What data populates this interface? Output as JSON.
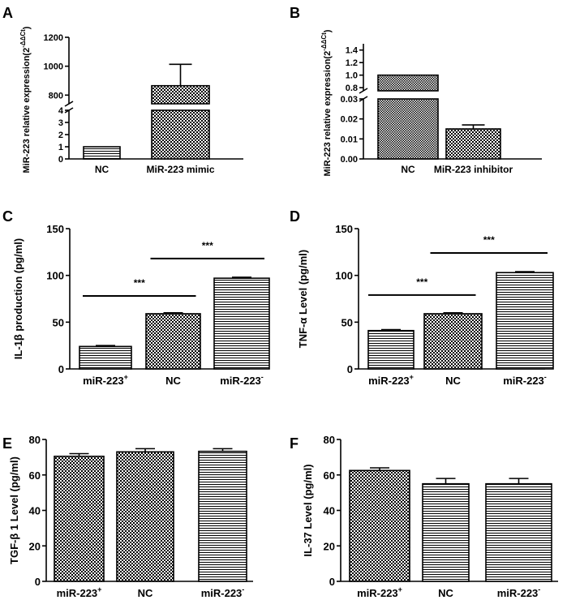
{
  "chart_data": [
    {
      "panel": "A",
      "type": "bar",
      "categories": [
        "NC",
        "MiR-223 mimic"
      ],
      "values": [
        1,
        865
      ],
      "errors": [
        0,
        148
      ],
      "ylabel": "MiR-223 relative expression(2",
      "ylabel_sup": "-ΔΔCt",
      "ylabel_close": ")",
      "axis_break": true,
      "lower_ticks": [
        "0",
        "1",
        "2",
        "3",
        "4"
      ],
      "upper_ticks": [
        "800",
        "1000",
        "1200"
      ],
      "lower_range": [
        0,
        4
      ],
      "upper_range": [
        740,
        1200
      ],
      "patterns": [
        "horiz",
        "check"
      ]
    },
    {
      "panel": "B",
      "type": "bar",
      "categories": [
        "NC",
        "MiR-223 inhibitor"
      ],
      "values": [
        1.0,
        0.015
      ],
      "errors": [
        0,
        0.002
      ],
      "ylabel": "MiR-223 relative expression(2",
      "ylabel_sup": "-ΔΔCt",
      "ylabel_close": ")",
      "axis_break": true,
      "lower_ticks": [
        "0.00",
        "0.01",
        "0.02",
        "0.03"
      ],
      "upper_ticks": [
        "0.8",
        "1.0",
        "1.2",
        "1.4"
      ],
      "lower_range": [
        0,
        0.03
      ],
      "upper_range": [
        0.75,
        1.5
      ],
      "patterns": [
        "dots",
        "check"
      ]
    },
    {
      "panel": "C",
      "type": "bar",
      "categories": [
        "miR-223",
        "NC",
        "miR-223"
      ],
      "category_sups": [
        "+",
        "",
        "-"
      ],
      "values": [
        24,
        59,
        97
      ],
      "errors": [
        1,
        1,
        1
      ],
      "ylabel": "IL-1β  production (pg/ml)",
      "ylim": [
        0,
        150
      ],
      "yticks": [
        "0",
        "50",
        "100",
        "150"
      ],
      "significance": [
        {
          "from": 0,
          "to": 1,
          "label": "***",
          "y": 78
        },
        {
          "from": 1,
          "to": 2,
          "label": "***",
          "y": 118
        }
      ],
      "patterns": [
        "horiz",
        "check",
        "horiz"
      ]
    },
    {
      "panel": "D",
      "type": "bar",
      "categories": [
        "miR-223",
        "NC",
        "miR-223"
      ],
      "category_sups": [
        "+",
        "",
        "-"
      ],
      "values": [
        41,
        59,
        103
      ],
      "errors": [
        1,
        1,
        1
      ],
      "ylabel": "TNF-α  Level (pg/ml)",
      "ylim": [
        0,
        150
      ],
      "yticks": [
        "0",
        "50",
        "100",
        "150"
      ],
      "significance": [
        {
          "from": 0,
          "to": 1,
          "label": "***",
          "y": 79
        },
        {
          "from": 1,
          "to": 2,
          "label": "***",
          "y": 124
        }
      ],
      "patterns": [
        "horiz",
        "check",
        "horiz"
      ]
    },
    {
      "panel": "E",
      "type": "bar",
      "categories": [
        "miR-223",
        "NC",
        "miR-223"
      ],
      "category_sups": [
        "+",
        "",
        "-"
      ],
      "values": [
        70.5,
        73,
        73.3
      ],
      "errors": [
        1.5,
        1.8,
        1.5
      ],
      "ylabel": "TGF-β 1 Level (pg/ml)",
      "ylim": [
        0,
        80
      ],
      "yticks": [
        "0",
        "20",
        "40",
        "60",
        "80"
      ],
      "patterns": [
        "check",
        "check",
        "horiz"
      ]
    },
    {
      "panel": "F",
      "type": "bar",
      "categories": [
        "miR-223",
        "NC",
        "miR-223"
      ],
      "category_sups": [
        "+",
        "",
        "-"
      ],
      "values": [
        62.5,
        55,
        55
      ],
      "errors": [
        1.5,
        3,
        3
      ],
      "ylabel": "IL-37 Level (pg/ml)",
      "ylim": [
        0,
        80
      ],
      "yticks": [
        "0",
        "20",
        "40",
        "60",
        "80"
      ],
      "patterns": [
        "check",
        "horiz",
        "horiz"
      ]
    }
  ]
}
